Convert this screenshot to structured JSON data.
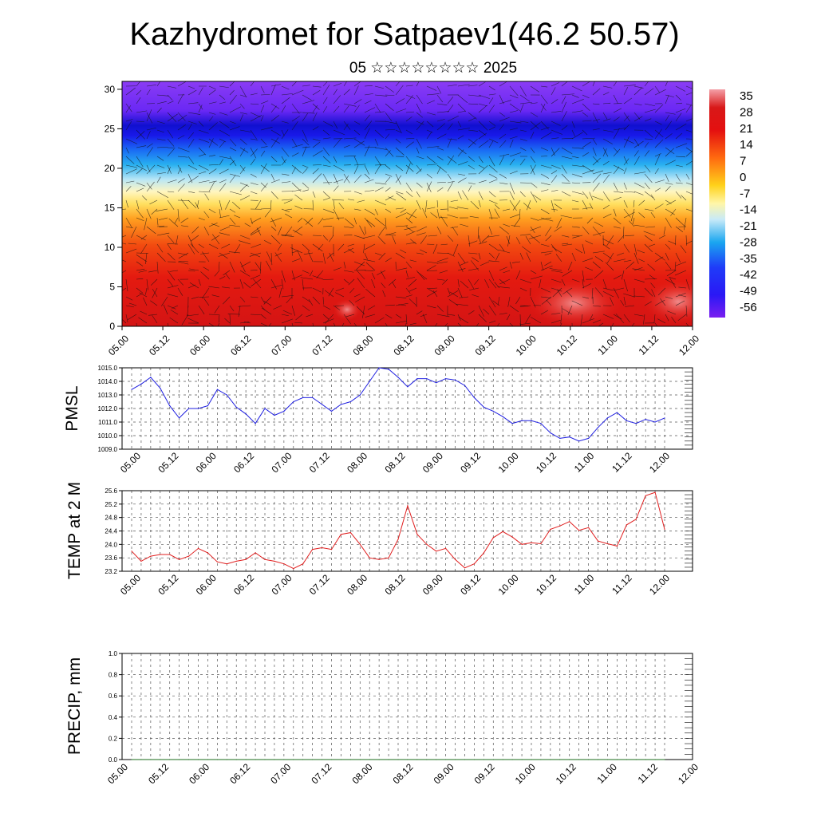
{
  "title": "Kazhydromet for Satpaev1(46.2 50.57)",
  "subtitle": "05 ☆☆☆☆☆☆☆☆ 2025",
  "colors": {
    "pmsl_line": "#1f1fe0",
    "temp_line": "#e01f1f",
    "precip_line": "#1a6b1a"
  },
  "chart_data": [
    {
      "type": "heatmap",
      "name": "cross-section",
      "x_ticks": [
        "05.00",
        "05.12",
        "06.00",
        "06.12",
        "07.00",
        "07.12",
        "08.00",
        "08.12",
        "09.00",
        "09.12",
        "10.00",
        "10.12",
        "11.00",
        "11.12",
        "12.00"
      ],
      "y_ticks": [
        0,
        5,
        10,
        15,
        20,
        25,
        30
      ],
      "ylim": [
        0,
        31
      ],
      "colorbar": {
        "labels": [
          35,
          28,
          21,
          14,
          7,
          0,
          -7,
          -14,
          -21,
          -28,
          -35,
          -42,
          -49,
          -56
        ],
        "range": [
          -60,
          40
        ]
      },
      "overlay": "wind vectors"
    },
    {
      "type": "line",
      "ylabel": "PMSL",
      "x_ticks": [
        "05.00",
        "05.12",
        "06.00",
        "06.12",
        "07.00",
        "07.12",
        "08.00",
        "08.12",
        "09.00",
        "09.12",
        "10.00",
        "10.12",
        "11.00",
        "11.12",
        "12.00"
      ],
      "y_ticks": [
        "1009.0",
        "1010.0",
        "1011.0",
        "1012.0",
        "1013.0",
        "1014.0",
        "1015.0"
      ],
      "ylim": [
        1009.0,
        1015.0
      ],
      "grid": true,
      "values": [
        1013.4,
        1013.8,
        1014.3,
        1013.5,
        1012.2,
        1011.3,
        1012.0,
        1012.0,
        1012.2,
        1013.4,
        1013.0,
        1012.1,
        1011.6,
        1010.9,
        1012.0,
        1011.5,
        1011.8,
        1012.5,
        1012.8,
        1012.8,
        1012.3,
        1011.8,
        1012.3,
        1012.5,
        1013.0,
        1014.0,
        1015.0,
        1014.9,
        1014.3,
        1013.6,
        1014.2,
        1014.2,
        1013.9,
        1014.2,
        1014.1,
        1013.7,
        1012.8,
        1012.1,
        1011.8,
        1011.4,
        1010.9,
        1011.1,
        1011.1,
        1010.9,
        1010.2,
        1009.8,
        1009.9,
        1009.6,
        1009.8,
        1010.6,
        1011.3,
        1011.7,
        1011.1,
        1010.9,
        1011.2,
        1011.0,
        1011.3
      ]
    },
    {
      "type": "line",
      "ylabel": "TEMP at 2 M",
      "x_ticks": [
        "05.00",
        "05.12",
        "06.00",
        "06.12",
        "07.00",
        "07.12",
        "08.00",
        "08.12",
        "09.00",
        "09.12",
        "10.00",
        "10.12",
        "11.00",
        "11.12",
        "12.00"
      ],
      "y_ticks": [
        "23.2",
        "23.6",
        "24.0",
        "24.4",
        "24.8",
        "25.2",
        "25.6"
      ],
      "ylim": [
        23.2,
        25.6
      ],
      "grid": true,
      "values": [
        23.8,
        23.5,
        23.65,
        23.7,
        23.7,
        23.55,
        23.65,
        23.88,
        23.75,
        23.48,
        23.42,
        23.5,
        23.55,
        23.75,
        23.55,
        23.5,
        23.42,
        23.28,
        23.42,
        23.85,
        23.9,
        23.85,
        24.3,
        24.35,
        24.0,
        23.6,
        23.55,
        23.6,
        24.15,
        25.15,
        24.3,
        24.0,
        23.8,
        23.88,
        23.55,
        23.3,
        23.42,
        23.75,
        24.2,
        24.38,
        24.22,
        24.0,
        24.05,
        24.02,
        24.45,
        24.55,
        24.68,
        24.42,
        24.5,
        24.1,
        24.02,
        23.95,
        24.58,
        24.75,
        25.45,
        25.55,
        24.45
      ]
    },
    {
      "type": "line",
      "ylabel": "PRECIP, mm",
      "x_ticks": [
        "05.00",
        "05.12",
        "06.00",
        "06.12",
        "07.00",
        "07.12",
        "08.00",
        "08.12",
        "09.00",
        "09.12",
        "10.00",
        "10.12",
        "11.00",
        "11.12",
        "12.00"
      ],
      "y_ticks": [
        "0.0",
        "0.2",
        "0.4",
        "0.6",
        "0.8",
        "1.0"
      ],
      "ylim": [
        0.0,
        1.0
      ],
      "grid": true,
      "values": [
        0,
        0,
        0,
        0,
        0,
        0,
        0,
        0,
        0,
        0,
        0,
        0,
        0,
        0,
        0,
        0,
        0,
        0,
        0,
        0,
        0,
        0,
        0,
        0,
        0,
        0,
        0,
        0,
        0,
        0,
        0,
        0,
        0,
        0,
        0,
        0,
        0,
        0,
        0,
        0,
        0,
        0,
        0,
        0,
        0,
        0,
        0,
        0,
        0,
        0,
        0,
        0,
        0,
        0,
        0,
        0,
        0
      ]
    }
  ]
}
